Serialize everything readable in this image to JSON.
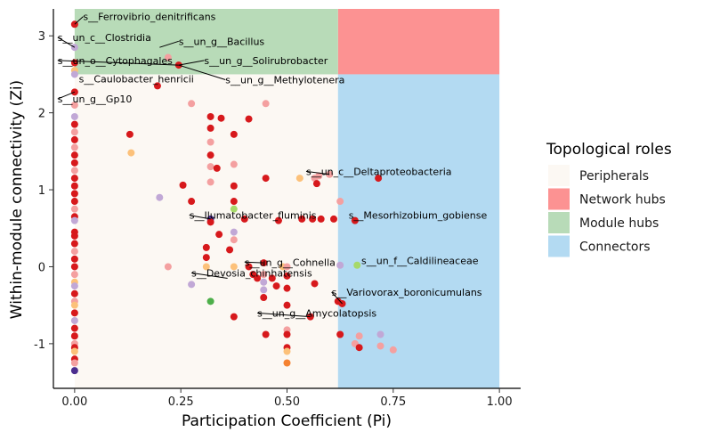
{
  "chart_data": {
    "type": "scatter",
    "xlabel": "Participation Coefficient (Pi)",
    "ylabel": "Within-module connectivity (Zi)",
    "xlim": [
      -0.05,
      1.05
    ],
    "ylim": [
      -1.58,
      3.35
    ],
    "x_ticks": [
      {
        "value": 0.0,
        "label": "0.00"
      },
      {
        "value": 0.25,
        "label": "0.25"
      },
      {
        "value": 0.5,
        "label": "0.50"
      },
      {
        "value": 0.75,
        "label": "0.75"
      },
      {
        "value": 1.0,
        "label": "1.00"
      }
    ],
    "y_ticks": [
      {
        "value": 3,
        "label": "3"
      },
      {
        "value": 2,
        "label": "2"
      },
      {
        "value": 1,
        "label": "1"
      },
      {
        "value": 0,
        "label": "0"
      },
      {
        "value": -1,
        "label": "-1"
      }
    ],
    "regions": [
      {
        "role": "Peripherals",
        "x": [
          0,
          0.62
        ],
        "y": [
          -1.58,
          2.5
        ],
        "color": "#fcf8f3"
      },
      {
        "role": "Network hubs",
        "x": [
          0.62,
          1.0
        ],
        "y": [
          2.5,
          3.35
        ],
        "color": "#fc9292"
      },
      {
        "role": "Module hubs",
        "x": [
          0,
          0.62
        ],
        "y": [
          2.5,
          3.35
        ],
        "color": "#b8dbb8"
      },
      {
        "role": "Connectors",
        "x": [
          0.62,
          1.0
        ],
        "y": [
          -1.58,
          2.5
        ],
        "color": "#b3daf2"
      }
    ],
    "legend": {
      "title": "Topological roles",
      "position": "right",
      "items": [
        {
          "label": "Peripherals",
          "color": "#fcf8f3"
        },
        {
          "label": "Network hubs",
          "color": "#fc9292"
        },
        {
          "label": "Module hubs",
          "color": "#b8dbb8"
        },
        {
          "label": "Connectors",
          "color": "#b3daf2"
        }
      ]
    },
    "point_colors": {
      "r": "#d7191c",
      "p": "#f4a0a0",
      "o": "#fcc17a",
      "l": "#c1a8d6",
      "g": "#4daf4a",
      "lg": "#a6d96a",
      "d": "#4b2d8e",
      "s": "#f58231"
    },
    "points": [
      [
        0.0,
        3.15,
        "r"
      ],
      [
        0.0,
        2.85,
        "l"
      ],
      [
        0.0,
        2.65,
        "r"
      ],
      [
        0.0,
        2.55,
        "o"
      ],
      [
        0.0,
        2.5,
        "l"
      ],
      [
        0.0,
        2.27,
        "r"
      ],
      [
        0.0,
        2.1,
        "p"
      ],
      [
        0.0,
        1.95,
        "l"
      ],
      [
        0.0,
        1.85,
        "r"
      ],
      [
        0.0,
        1.75,
        "p"
      ],
      [
        0.0,
        1.65,
        "r"
      ],
      [
        0.0,
        1.55,
        "p"
      ],
      [
        0.0,
        1.45,
        "r"
      ],
      [
        0.0,
        1.35,
        "r"
      ],
      [
        0.0,
        1.25,
        "p"
      ],
      [
        0.0,
        1.15,
        "r"
      ],
      [
        0.0,
        1.05,
        "r"
      ],
      [
        0.0,
        0.95,
        "r"
      ],
      [
        0.0,
        0.85,
        "r"
      ],
      [
        0.0,
        0.75,
        "p"
      ],
      [
        0.0,
        0.65,
        "r"
      ],
      [
        0.0,
        0.6,
        "l"
      ],
      [
        0.0,
        0.45,
        "r"
      ],
      [
        0.0,
        0.4,
        "r"
      ],
      [
        0.0,
        0.3,
        "r"
      ],
      [
        0.0,
        0.2,
        "p"
      ],
      [
        0.0,
        0.1,
        "r"
      ],
      [
        0.0,
        0.0,
        "r"
      ],
      [
        0.0,
        -0.1,
        "p"
      ],
      [
        0.0,
        -0.2,
        "o"
      ],
      [
        0.0,
        -0.25,
        "l"
      ],
      [
        0.0,
        -0.35,
        "r"
      ],
      [
        0.0,
        -0.45,
        "p"
      ],
      [
        0.0,
        -0.5,
        "o"
      ],
      [
        0.0,
        -0.6,
        "r"
      ],
      [
        0.0,
        -0.7,
        "l"
      ],
      [
        0.0,
        -0.8,
        "r"
      ],
      [
        0.0,
        -0.9,
        "r"
      ],
      [
        0.0,
        -1.0,
        "p"
      ],
      [
        0.0,
        -1.05,
        "r"
      ],
      [
        0.0,
        -1.1,
        "o"
      ],
      [
        0.0,
        -1.2,
        "r"
      ],
      [
        0.0,
        -1.25,
        "p"
      ],
      [
        0.0,
        -1.35,
        "d"
      ],
      [
        0.13,
        1.72,
        "r"
      ],
      [
        0.133,
        1.48,
        "o"
      ],
      [
        0.195,
        2.35,
        "r"
      ],
      [
        0.22,
        2.72,
        "p"
      ],
      [
        0.245,
        2.62,
        "r"
      ],
      [
        0.2,
        0.9,
        "l"
      ],
      [
        0.22,
        0.0,
        "p"
      ],
      [
        0.255,
        1.06,
        "r"
      ],
      [
        0.275,
        2.12,
        "p"
      ],
      [
        0.275,
        0.85,
        "r"
      ],
      [
        0.275,
        -0.23,
        "l"
      ],
      [
        0.31,
        0.25,
        "r"
      ],
      [
        0.31,
        0.12,
        "r"
      ],
      [
        0.31,
        0.0,
        "o"
      ],
      [
        0.32,
        1.95,
        "r"
      ],
      [
        0.32,
        1.8,
        "r"
      ],
      [
        0.32,
        1.62,
        "p"
      ],
      [
        0.32,
        1.45,
        "r"
      ],
      [
        0.32,
        1.3,
        "p"
      ],
      [
        0.32,
        1.1,
        "p"
      ],
      [
        0.32,
        0.62,
        "d"
      ],
      [
        0.32,
        0.58,
        "r"
      ],
      [
        0.32,
        -0.45,
        "g"
      ],
      [
        0.335,
        1.28,
        "r"
      ],
      [
        0.345,
        1.93,
        "r"
      ],
      [
        0.34,
        0.42,
        "r"
      ],
      [
        0.365,
        0.22,
        "r"
      ],
      [
        0.375,
        1.72,
        "r"
      ],
      [
        0.375,
        1.33,
        "p"
      ],
      [
        0.375,
        1.05,
        "r"
      ],
      [
        0.375,
        0.85,
        "r"
      ],
      [
        0.375,
        0.75,
        "lg"
      ],
      [
        0.375,
        0.45,
        "l"
      ],
      [
        0.375,
        0.35,
        "p"
      ],
      [
        0.375,
        0.0,
        "o"
      ],
      [
        0.375,
        -0.65,
        "r"
      ],
      [
        0.41,
        1.92,
        "r"
      ],
      [
        0.4,
        0.62,
        "r"
      ],
      [
        0.41,
        0.0,
        "r"
      ],
      [
        0.42,
        -0.1,
        "r"
      ],
      [
        0.43,
        -0.15,
        "r"
      ],
      [
        0.445,
        0.05,
        "r"
      ],
      [
        0.445,
        -0.1,
        "p"
      ],
      [
        0.445,
        -0.2,
        "l"
      ],
      [
        0.445,
        -0.3,
        "l"
      ],
      [
        0.445,
        -0.4,
        "r"
      ],
      [
        0.45,
        2.12,
        "p"
      ],
      [
        0.45,
        1.15,
        "r"
      ],
      [
        0.45,
        -0.88,
        "r"
      ],
      [
        0.465,
        -0.15,
        "r"
      ],
      [
        0.475,
        -0.25,
        "r"
      ],
      [
        0.48,
        0.6,
        "r"
      ],
      [
        0.49,
        0.0,
        "o"
      ],
      [
        0.5,
        0.0,
        "p"
      ],
      [
        0.5,
        -0.12,
        "r"
      ],
      [
        0.5,
        -0.28,
        "r"
      ],
      [
        0.5,
        -0.5,
        "r"
      ],
      [
        0.5,
        -0.82,
        "p"
      ],
      [
        0.5,
        -0.88,
        "r"
      ],
      [
        0.5,
        -1.05,
        "r"
      ],
      [
        0.5,
        -1.1,
        "o"
      ],
      [
        0.5,
        -1.25,
        "s"
      ],
      [
        0.53,
        1.15,
        "o"
      ],
      [
        0.535,
        0.62,
        "r"
      ],
      [
        0.555,
        -0.65,
        "r"
      ],
      [
        0.56,
        0.62,
        "r"
      ],
      [
        0.565,
        -0.22,
        "r"
      ],
      [
        0.565,
        1.15,
        "p"
      ],
      [
        0.57,
        1.08,
        "r"
      ],
      [
        0.575,
        1.18,
        "p"
      ],
      [
        0.58,
        0.62,
        "r"
      ],
      [
        0.6,
        1.2,
        "p"
      ],
      [
        0.61,
        0.62,
        "r"
      ],
      [
        0.62,
        -0.45,
        "r"
      ],
      [
        0.625,
        0.85,
        "p"
      ],
      [
        0.625,
        0.02,
        "l"
      ],
      [
        0.625,
        -0.88,
        "r"
      ],
      [
        0.63,
        -0.48,
        "r"
      ],
      [
        0.66,
        0.6,
        "r"
      ],
      [
        0.66,
        -1.0,
        "p"
      ],
      [
        0.665,
        0.02,
        "lg"
      ],
      [
        0.67,
        -0.9,
        "p"
      ],
      [
        0.67,
        -1.05,
        "r"
      ],
      [
        0.715,
        1.15,
        "r"
      ],
      [
        0.72,
        -0.88,
        "l"
      ],
      [
        0.72,
        -1.03,
        "p"
      ],
      [
        0.75,
        -1.08,
        "p"
      ]
    ],
    "annotations": [
      {
        "text": "s__Ferrovibrio_denitrificans",
        "point": [
          0.0,
          3.15
        ],
        "label": [
          0.02,
          3.25
        ],
        "anchor": "start"
      },
      {
        "text": "s__un_c__Clostridia",
        "point": [
          0.0,
          2.85
        ],
        "label": [
          -0.04,
          2.98
        ],
        "anchor": "start"
      },
      {
        "text": "s__un_g__Bacillus",
        "point": [
          0.2,
          2.85
        ],
        "label": [
          0.245,
          2.93
        ],
        "anchor": "start"
      },
      {
        "text": "s__un_o__Cytophagales",
        "point": [
          0.245,
          2.62
        ],
        "label": [
          -0.04,
          2.68
        ],
        "anchor": "start"
      },
      {
        "text": "s__un_g__Solirubrobacter",
        "point": [
          0.245,
          2.62
        ],
        "label": [
          0.305,
          2.68
        ],
        "anchor": "start"
      },
      {
        "text": "s__Caulobacter_henricii",
        "point": [
          0.0,
          2.55
        ],
        "label": [
          0.01,
          2.44
        ],
        "anchor": "start"
      },
      {
        "text": "s__un_g__Methylotenera",
        "point": [
          0.245,
          2.62
        ],
        "label": [
          0.355,
          2.43
        ],
        "anchor": "start"
      },
      {
        "text": "s__un_g__Gp10",
        "point": [
          0.0,
          2.27
        ],
        "label": [
          -0.04,
          2.18
        ],
        "anchor": "start"
      },
      {
        "text": "s__un_c__Deltaproteobacteria",
        "point": [
          0.6,
          1.2
        ],
        "label": [
          0.545,
          1.24
        ],
        "anchor": "start"
      },
      {
        "text": "s__Ilumatobacter_fluminis",
        "point": [
          0.32,
          0.62
        ],
        "label": [
          0.27,
          0.67
        ],
        "anchor": "start"
      },
      {
        "text": "s__Mesorhizobium_gobiense",
        "point": [
          0.66,
          0.6
        ],
        "label": [
          0.645,
          0.67
        ],
        "anchor": "start"
      },
      {
        "text": "s__un_g__Cohnella",
        "point": [
          0.445,
          0.05
        ],
        "label": [
          0.4,
          0.06
        ],
        "anchor": "start"
      },
      {
        "text": "s__un_f__Caldilineaceae",
        "point": [
          0.665,
          0.02
        ],
        "label": [
          0.675,
          0.08
        ],
        "anchor": "start"
      },
      {
        "text": "s__Devosia_chinhatensis",
        "point": [
          0.36,
          -0.15
        ],
        "label": [
          0.275,
          -0.08
        ],
        "anchor": "start"
      },
      {
        "text": "s__Variovorax_boronicumulans",
        "point": [
          0.63,
          -0.48
        ],
        "label": [
          0.605,
          -0.33
        ],
        "anchor": "start"
      },
      {
        "text": "s__un_g__Amycolatopsis",
        "point": [
          0.555,
          -0.65
        ],
        "label": [
          0.43,
          -0.6
        ],
        "anchor": "start"
      }
    ]
  }
}
